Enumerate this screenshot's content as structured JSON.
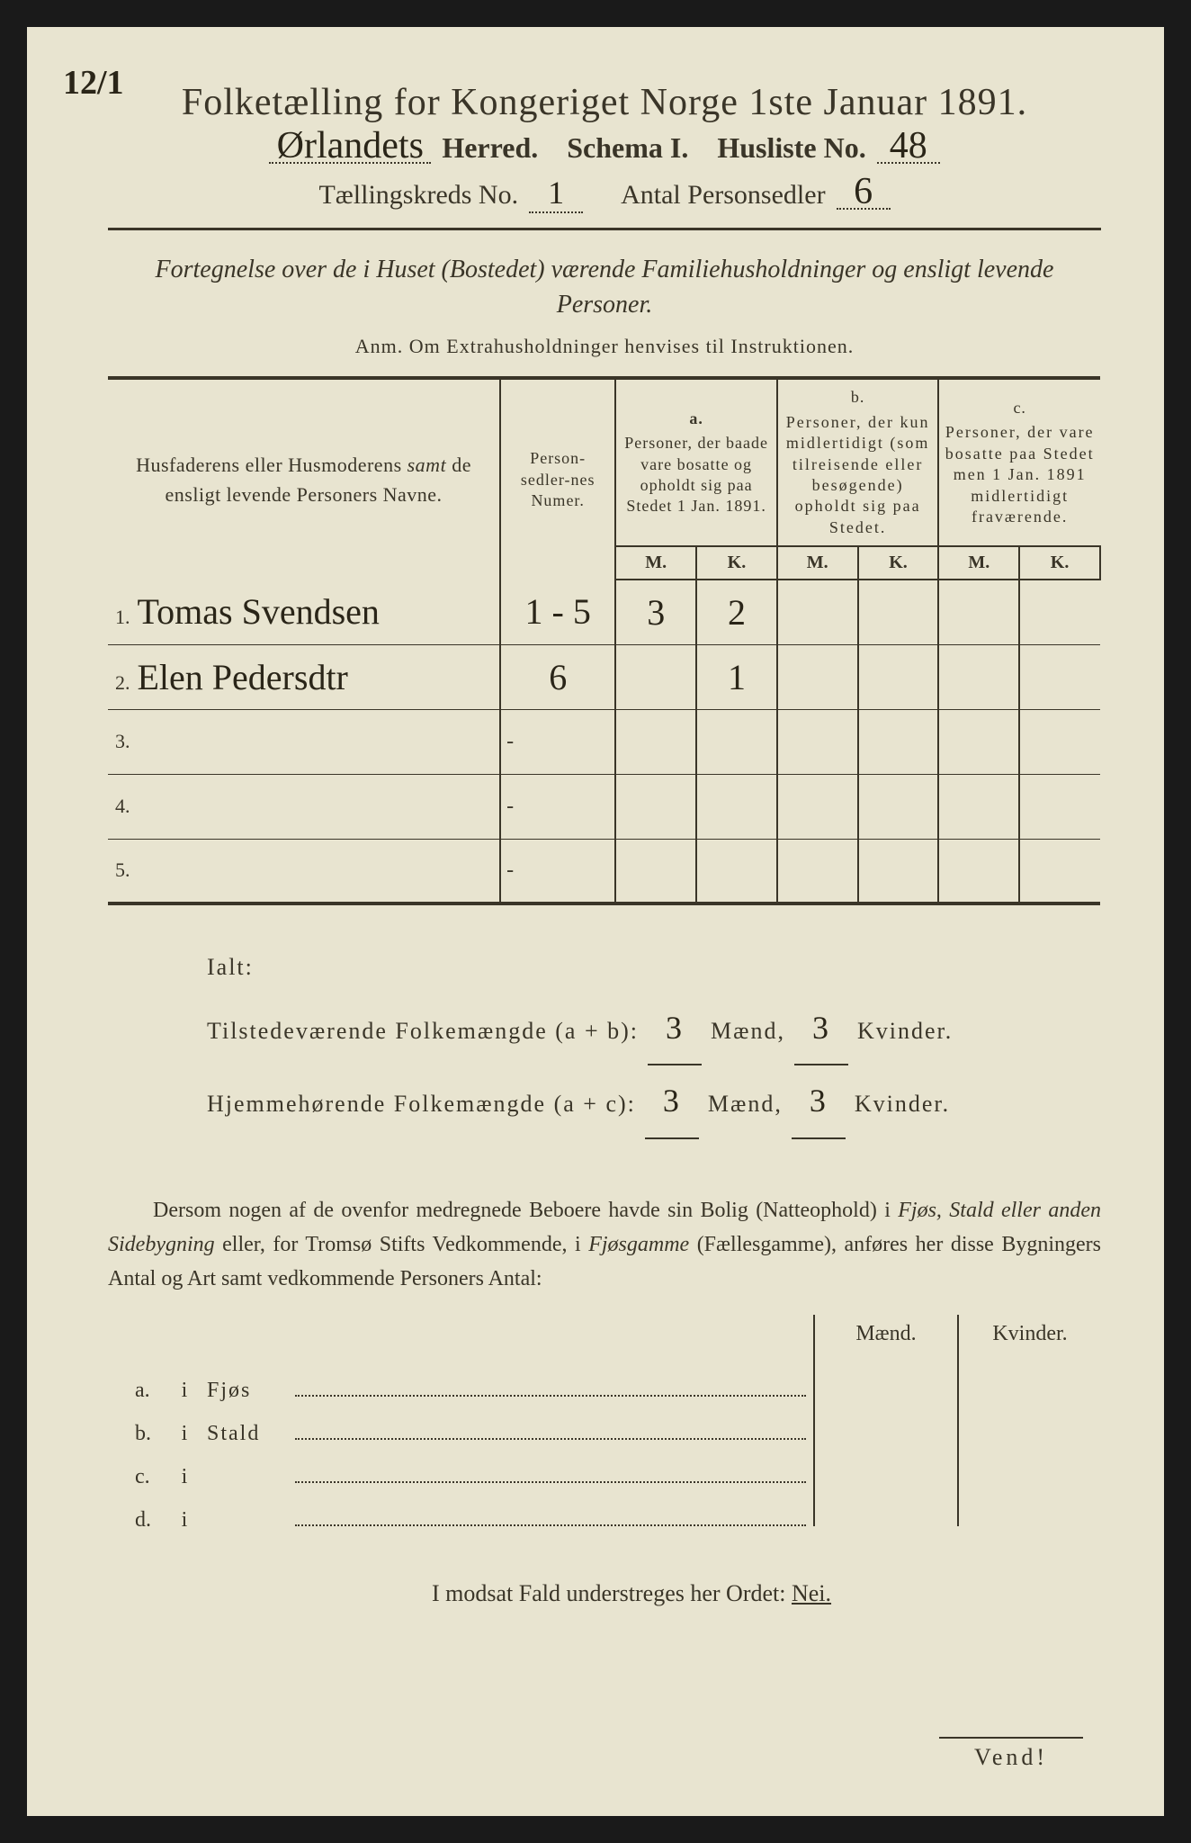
{
  "corner_mark": "12/1",
  "title": "Folketælling for Kongeriget Norge 1ste Januar 1891.",
  "header": {
    "herred_value": "Ørlandets",
    "herred_label": "Herred.",
    "schema_label": "Schema I.",
    "husliste_label": "Husliste No.",
    "husliste_value": "48",
    "kreds_label": "Tællingskreds No.",
    "kreds_value": "1",
    "antal_label": "Antal Personsedler",
    "antal_value": "6"
  },
  "subtitle": "Fortegnelse over de i Huset (Bostedet) værende Familiehusholdninger og ensligt levende Personer.",
  "anm": "Anm.  Om Extrahusholdninger henvises til Instruktionen.",
  "columns": {
    "name": "Husfaderens eller Husmoderens samt de ensligt levende Personers Navne.",
    "numer": "Person-sedler-nes Numer.",
    "a_label": "a.",
    "a": "Personer, der baade vare bosatte og opholdt sig paa Stedet 1 Jan. 1891.",
    "b_label": "b.",
    "b": "Personer, der kun midlertidigt (som tilreisende eller besøgende) opholdt sig paa Stedet.",
    "c_label": "c.",
    "c": "Personer, der vare bosatte paa Stedet men 1 Jan. 1891 midlertidigt fraværende.",
    "m": "M.",
    "k": "K."
  },
  "rows": [
    {
      "n": "1.",
      "name": "Tomas Svendsen",
      "numer": "1 - 5",
      "am": "3",
      "ak": "2",
      "bm": "",
      "bk": "",
      "cm": "",
      "ck": ""
    },
    {
      "n": "2.",
      "name": "Elen Pedersdtr",
      "numer": "6",
      "am": "",
      "ak": "1",
      "bm": "",
      "bk": "",
      "cm": "",
      "ck": ""
    },
    {
      "n": "3.",
      "name": "",
      "numer": "-",
      "am": "",
      "ak": "",
      "bm": "",
      "bk": "",
      "cm": "",
      "ck": ""
    },
    {
      "n": "4.",
      "name": "",
      "numer": "-",
      "am": "",
      "ak": "",
      "bm": "",
      "bk": "",
      "cm": "",
      "ck": ""
    },
    {
      "n": "5.",
      "name": "",
      "numer": "-",
      "am": "",
      "ak": "",
      "bm": "",
      "bk": "",
      "cm": "",
      "ck": ""
    }
  ],
  "totals": {
    "ialt": "Ialt:",
    "tilstede_label": "Tilstedeværende Folkemængde (a + b):",
    "hjemme_label": "Hjemmehørende Folkemængde (a + c):",
    "maend": "Mænd,",
    "kvinder": "Kvinder.",
    "tilstede_m": "3",
    "tilstede_k": "3",
    "hjemme_m": "3",
    "hjemme_k": "3"
  },
  "paragraph": {
    "p1": "Dersom nogen af de ovenfor medregnede Beboere havde sin Bolig (Natteophold) i ",
    "p2": "Fjøs, Stald eller anden Sidebygning",
    "p3": " eller, for Tromsø Stifts Vedkommende, i ",
    "p4": "Fjøsgamme",
    "p5": " (Fællesgamme), anføres her disse Bygningers Antal og Art samt vedkommende Personers Antal:"
  },
  "building_cols": {
    "maend": "Mænd.",
    "kvinder": "Kvinder."
  },
  "buildings": [
    {
      "l": "a.",
      "i": "i",
      "name": "Fjøs"
    },
    {
      "l": "b.",
      "i": "i",
      "name": "Stald"
    },
    {
      "l": "c.",
      "i": "i",
      "name": ""
    },
    {
      "l": "d.",
      "i": "i",
      "name": ""
    }
  ],
  "nei_line": {
    "text": "I modsat Fald understreges her Ordet: ",
    "nei": "Nei."
  },
  "vend": "Vend!",
  "colors": {
    "page_bg": "#e8e4d0",
    "text": "#3a3528",
    "handwriting": "#2a2518",
    "outer_bg": "#1a1a1a"
  }
}
